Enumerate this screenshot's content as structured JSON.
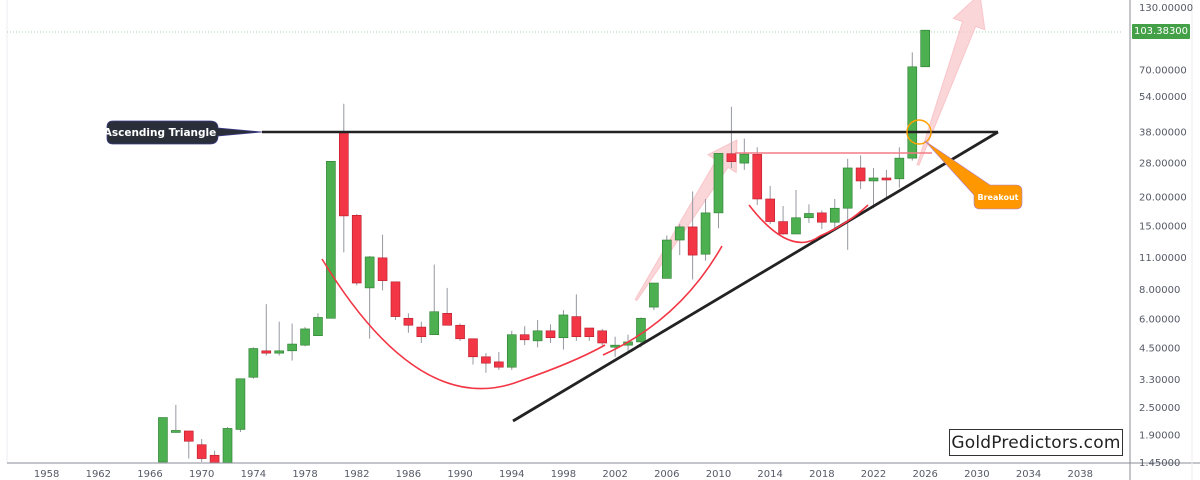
{
  "chart_data": {
    "type": "candlestick",
    "title": "",
    "xlabel": "",
    "ylabel": "",
    "scale": "log",
    "ylim": [
      1.45,
      130
    ],
    "grid": false,
    "x_ticks": [
      "1958",
      "1962",
      "1966",
      "1970",
      "1974",
      "1978",
      "1982",
      "1986",
      "1990",
      "1994",
      "1998",
      "2002",
      "2006",
      "2010",
      "2014",
      "2018",
      "2022",
      "2026",
      "2030",
      "2034",
      "2038"
    ],
    "y_ticks": [
      "130.00000",
      "70.00000",
      "54.00000",
      "38.00000",
      "28.00000",
      "20.00000",
      "15.00000",
      "11.00000",
      "8.00000",
      "6.00000",
      "4.50000",
      "3.30000",
      "2.50000",
      "1.90000",
      "1.45000"
    ],
    "last_price": "103.38300",
    "candles": [
      {
        "year": 1967,
        "o": 1.45,
        "c": 2.25,
        "h": 2.25,
        "l": 1.45
      },
      {
        "year": 1968,
        "o": 1.95,
        "c": 1.98,
        "h": 2.55,
        "l": 1.95
      },
      {
        "year": 1969,
        "o": 1.97,
        "c": 1.78,
        "h": 1.97,
        "l": 1.5
      },
      {
        "year": 1970,
        "o": 1.72,
        "c": 1.5,
        "h": 1.82,
        "l": 1.45
      },
      {
        "year": 1971,
        "o": 1.55,
        "c": 1.3,
        "h": 1.62,
        "l": 1.3
      },
      {
        "year": 1972,
        "o": 1.3,
        "c": 2.02,
        "h": 2.05,
        "l": 1.3
      },
      {
        "year": 1973,
        "o": 2.0,
        "c": 3.3,
        "h": 3.3,
        "l": 1.95
      },
      {
        "year": 1974,
        "o": 3.35,
        "c": 4.45,
        "h": 4.5,
        "l": 3.3
      },
      {
        "year": 1975,
        "o": 4.35,
        "c": 4.25,
        "h": 6.9,
        "l": 4.15
      },
      {
        "year": 1976,
        "o": 4.25,
        "c": 4.35,
        "h": 5.8,
        "l": 4.15
      },
      {
        "year": 1977,
        "o": 4.35,
        "c": 4.65,
        "h": 5.7,
        "l": 3.95
      },
      {
        "year": 1978,
        "o": 4.6,
        "c": 5.4,
        "h": 5.5,
        "l": 4.55
      },
      {
        "year": 1979,
        "o": 5.05,
        "c": 6.05,
        "h": 6.3,
        "l": 5.05
      },
      {
        "year": 1980,
        "o": 6.0,
        "c": 28.3,
        "h": 28.3,
        "l": 6.0
      },
      {
        "year": 1981,
        "o": 37.8,
        "c": 16.5,
        "h": 50.0,
        "l": 11.5
      },
      {
        "year": 1982,
        "o": 16.6,
        "c": 8.5,
        "h": 16.8,
        "l": 8.3
      },
      {
        "year": 1983,
        "o": 8.1,
        "c": 11.0,
        "h": 11.1,
        "l": 4.9
      },
      {
        "year": 1984,
        "o": 10.9,
        "c": 8.7,
        "h": 13.7,
        "l": 7.9
      },
      {
        "year": 1985,
        "o": 8.6,
        "c": 6.1,
        "h": 8.6,
        "l": 5.9
      },
      {
        "year": 1986,
        "o": 6.0,
        "c": 5.6,
        "h": 6.3,
        "l": 5.2
      },
      {
        "year": 1987,
        "o": 5.5,
        "c": 5.0,
        "h": 5.8,
        "l": 4.7
      },
      {
        "year": 1988,
        "o": 5.1,
        "c": 6.4,
        "h": 10.2,
        "l": 5.1
      },
      {
        "year": 1989,
        "o": 6.3,
        "c": 5.6,
        "h": 8.1,
        "l": 5.6
      },
      {
        "year": 1990,
        "o": 5.6,
        "c": 4.9,
        "h": 5.7,
        "l": 4.8
      },
      {
        "year": 1991,
        "o": 4.9,
        "c": 4.1,
        "h": 4.9,
        "l": 3.8
      },
      {
        "year": 1992,
        "o": 4.1,
        "c": 3.85,
        "h": 4.25,
        "l": 3.5
      },
      {
        "year": 1993,
        "o": 3.9,
        "c": 3.7,
        "h": 4.3,
        "l": 3.6
      },
      {
        "year": 1994,
        "o": 3.7,
        "c": 5.1,
        "h": 5.3,
        "l": 3.6
      },
      {
        "year": 1995,
        "o": 5.1,
        "c": 4.85,
        "h": 5.55,
        "l": 4.6
      },
      {
        "year": 1996,
        "o": 4.8,
        "c": 5.3,
        "h": 5.9,
        "l": 4.5
      },
      {
        "year": 1997,
        "o": 5.3,
        "c": 4.95,
        "h": 5.65,
        "l": 4.7
      },
      {
        "year": 1998,
        "o": 4.95,
        "c": 6.2,
        "h": 6.5,
        "l": 4.4
      },
      {
        "year": 1999,
        "o": 6.1,
        "c": 5.0,
        "h": 7.6,
        "l": 4.8
      },
      {
        "year": 2000,
        "o": 5.45,
        "c": 5.0,
        "h": 5.45,
        "l": 4.8
      },
      {
        "year": 2001,
        "o": 5.3,
        "c": 4.7,
        "h": 5.4,
        "l": 4.6
      },
      {
        "year": 2002,
        "o": 4.6,
        "c": 4.6,
        "h": 5.0,
        "l": 4.1
      },
      {
        "year": 2003,
        "o": 4.6,
        "c": 4.75,
        "h": 5.1,
        "l": 4.35
      },
      {
        "year": 2004,
        "o": 4.75,
        "c": 6.0,
        "h": 6.05,
        "l": 4.5
      },
      {
        "year": 2005,
        "o": 6.7,
        "c": 8.5,
        "h": 8.5,
        "l": 6.5
      },
      {
        "year": 2006,
        "o": 8.9,
        "c": 13.0,
        "h": 13.6,
        "l": 8.9
      },
      {
        "year": 2007,
        "o": 13.0,
        "c": 14.8,
        "h": 15.2,
        "l": 11.2
      },
      {
        "year": 2008,
        "o": 14.8,
        "c": 11.2,
        "h": 21.0,
        "l": 8.8
      },
      {
        "year": 2009,
        "o": 11.3,
        "c": 17.0,
        "h": 19.5,
        "l": 10.6
      },
      {
        "year": 2010,
        "o": 17.0,
        "c": 30.6,
        "h": 30.6,
        "l": 14.6
      },
      {
        "year": 2011,
        "o": 30.5,
        "c": 28.2,
        "h": 48.5,
        "l": 26.5
      },
      {
        "year": 2012,
        "o": 27.8,
        "c": 30.4,
        "h": 35.4,
        "l": 26.0
      },
      {
        "year": 2013,
        "o": 30.3,
        "c": 19.5,
        "h": 32.5,
        "l": 18.4
      },
      {
        "year": 2014,
        "o": 19.5,
        "c": 15.6,
        "h": 22.2,
        "l": 15.2
      },
      {
        "year": 2015,
        "o": 15.6,
        "c": 13.8,
        "h": 18.2,
        "l": 13.7
      },
      {
        "year": 2016,
        "o": 13.8,
        "c": 16.2,
        "h": 21.3,
        "l": 13.8
      },
      {
        "year": 2017,
        "o": 16.2,
        "c": 16.9,
        "h": 18.5,
        "l": 15.4
      },
      {
        "year": 2018,
        "o": 17.0,
        "c": 15.5,
        "h": 17.4,
        "l": 14.5
      },
      {
        "year": 2019,
        "o": 15.5,
        "c": 17.8,
        "h": 19.5,
        "l": 14.3
      },
      {
        "year": 2020,
        "o": 17.8,
        "c": 26.5,
        "h": 29.0,
        "l": 11.8
      },
      {
        "year": 2021,
        "o": 26.5,
        "c": 23.3,
        "h": 30.0,
        "l": 21.5
      },
      {
        "year": 2022,
        "o": 23.3,
        "c": 24.0,
        "h": 26.5,
        "l": 17.8
      },
      {
        "year": 2023,
        "o": 24.0,
        "c": 23.8,
        "h": 26.0,
        "l": 19.7
      },
      {
        "year": 2024,
        "o": 23.8,
        "c": 29.2,
        "h": 32.5,
        "l": 21.8
      },
      {
        "year": 2025,
        "o": 29.2,
        "c": 72.0,
        "h": 83.0,
        "l": 28.5
      },
      {
        "year": 2026,
        "o": 72.0,
        "c": 103.383,
        "h": 103.383,
        "l": 72.0
      }
    ],
    "annotations": [
      {
        "type": "horizontal-resistance",
        "label": "Ascending Triangle",
        "price": 38.0,
        "x_start_year": 1974,
        "x_end_year": 2031
      },
      {
        "type": "ascending-trendline",
        "from": {
          "year": 1994,
          "price": 2.15
        },
        "to": {
          "year": 2031,
          "price": 38.0
        }
      },
      {
        "type": "callout",
        "label": "Breakout",
        "at": {
          "year": 2025,
          "price": 38.0
        }
      },
      {
        "type": "cup",
        "name": "cup-1980-2012",
        "from_year": 1980,
        "to_year": 2009
      },
      {
        "type": "cup",
        "name": "cup-2013-2020",
        "from_year": 2013,
        "to_year": 2020
      },
      {
        "type": "neckline",
        "price": 30.8,
        "from_year": 2010,
        "to_year": 2026
      },
      {
        "type": "arrow",
        "name": "rally-arrow-2010"
      },
      {
        "type": "arrow",
        "name": "projection-arrow-2026"
      }
    ]
  },
  "labels": {
    "ascending_triangle": "Ascending Triangle",
    "breakout": "Breakout",
    "watermark": "GoldPredictors.com",
    "last_price": "103.38300"
  },
  "colors": {
    "up": "#4caf50",
    "down": "#f23645",
    "trendline": "#222222",
    "cup_curve": "#f23645",
    "breakout_callout": "#ff9800",
    "callout_dark": "#2a2e39",
    "arrow_fill": "#f8c8cc",
    "last_price_bg": "#43a047"
  }
}
